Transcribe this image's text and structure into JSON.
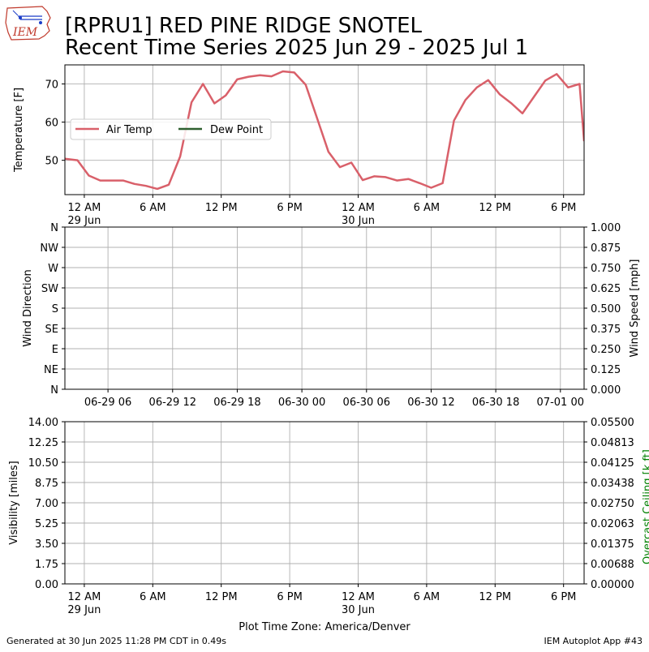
{
  "header": {
    "title_line1": "[RPRU1] RED PINE RIDGE SNOTEL",
    "title_line2": "Recent Time Series 2025 Jun 29 - 2025 Jul 1",
    "logo_text": "IEM"
  },
  "footer": {
    "generated": "Generated at 30 Jun 2025 11:28 PM CDT in 0.49s",
    "app": "IEM Autoplot App #43",
    "timezone_label": "Plot Time Zone: America/Denver"
  },
  "colors": {
    "air_temp": "#d9606a",
    "dew_point": "#2f5f2f",
    "ceiling_label": "#008000"
  },
  "chart_data": [
    {
      "type": "line",
      "ylabel": "Temperature [F]",
      "ylim": [
        41,
        75
      ],
      "yticks": [
        50,
        60,
        70
      ],
      "xlim_hours": [
        -1.7,
        43.8
      ],
      "xticks": [
        {
          "h": 0,
          "label": "12 AM",
          "sub": "29 Jun"
        },
        {
          "h": 6,
          "label": "6 AM",
          "sub": ""
        },
        {
          "h": 12,
          "label": "12 PM",
          "sub": ""
        },
        {
          "h": 18,
          "label": "6 PM",
          "sub": ""
        },
        {
          "h": 24,
          "label": "12 AM",
          "sub": "30 Jun"
        },
        {
          "h": 30,
          "label": "6 AM",
          "sub": ""
        },
        {
          "h": 36,
          "label": "12 PM",
          "sub": ""
        },
        {
          "h": 42,
          "label": "6 PM",
          "sub": ""
        }
      ],
      "grid": true,
      "legend_placement": "center-left",
      "series": [
        {
          "name": "Air Temp",
          "x_hours": [
            -1.7,
            -0.6,
            0.4,
            1.4,
            2.4,
            3.4,
            4.4,
            5.4,
            6.4,
            7.4,
            8.4,
            9.4,
            10.4,
            11.4,
            12.4,
            13.4,
            14.4,
            15.4,
            16.4,
            17.4,
            18.4,
            19.4,
            20.4,
            21.4,
            22.4,
            23.4,
            24.4,
            25.4,
            26.4,
            27.4,
            28.4,
            29.4,
            30.4,
            31.4,
            32.4,
            33.4,
            34.4,
            35.4,
            36.4,
            37.4,
            38.4,
            39.4,
            40.4,
            41.4,
            42.4,
            43.4,
            43.8
          ],
          "values": [
            50.4,
            50.0,
            46.0,
            44.7,
            44.7,
            44.7,
            43.8,
            43.3,
            42.5,
            43.6,
            51.0,
            65.2,
            70.0,
            64.9,
            67.0,
            71.2,
            71.9,
            72.3,
            72.0,
            73.3,
            73.0,
            69.8,
            61.0,
            52.2,
            48.2,
            49.4,
            44.8,
            45.8,
            45.6,
            44.7,
            45.1,
            44.0,
            42.8,
            44.0,
            60.4,
            65.8,
            69.1,
            71.0,
            67.3,
            65.0,
            62.3,
            66.6,
            70.9,
            72.6,
            69.1,
            70.0,
            55.0
          ]
        },
        {
          "name": "Dew Point",
          "x_hours": [],
          "values": []
        }
      ]
    },
    {
      "type": "scatter",
      "ylabel_left": "Wind Direction",
      "ylabel_right": "Wind Speed [mph]",
      "yticks_left": [
        "N",
        "NE",
        "E",
        "SE",
        "S",
        "SW",
        "W",
        "NW",
        "N"
      ],
      "ylim_right": [
        0,
        1
      ],
      "yticks_right": [
        "0.000",
        "0.125",
        "0.250",
        "0.375",
        "0.500",
        "0.625",
        "0.750",
        "0.875",
        "1.000"
      ],
      "xlim_hours": [
        2.0,
        50.2
      ],
      "xticks": [
        {
          "h": 6,
          "label": "06-29 06"
        },
        {
          "h": 12,
          "label": "06-29 12"
        },
        {
          "h": 18,
          "label": "06-29 18"
        },
        {
          "h": 24,
          "label": "06-30 00"
        },
        {
          "h": 30,
          "label": "06-30 06"
        },
        {
          "h": 36,
          "label": "06-30 12"
        },
        {
          "h": 42,
          "label": "06-30 18"
        },
        {
          "h": 48,
          "label": "07-01 00"
        }
      ],
      "grid": true,
      "series": []
    },
    {
      "type": "line",
      "ylabel_left": "Visibility [miles]",
      "ylabel_right": "Overcast Ceiling [k ft]",
      "ylim_left": [
        0,
        14
      ],
      "yticks_left": [
        "0.00",
        "1.75",
        "3.50",
        "5.25",
        "7.00",
        "8.75",
        "10.50",
        "12.25",
        "14.00"
      ],
      "ylim_right": [
        0,
        0.055
      ],
      "yticks_right": [
        "0.00000",
        "0.00688",
        "0.01375",
        "0.02063",
        "0.02750",
        "0.03438",
        "0.04125",
        "0.04813",
        "0.05500"
      ],
      "xlim_hours": [
        -1.7,
        43.8
      ],
      "xticks": [
        {
          "h": 0,
          "label": "12 AM",
          "sub": "29 Jun"
        },
        {
          "h": 6,
          "label": "6 AM",
          "sub": ""
        },
        {
          "h": 12,
          "label": "12 PM",
          "sub": ""
        },
        {
          "h": 18,
          "label": "6 PM",
          "sub": ""
        },
        {
          "h": 24,
          "label": "12 AM",
          "sub": "30 Jun"
        },
        {
          "h": 30,
          "label": "6 AM",
          "sub": ""
        },
        {
          "h": 36,
          "label": "12 PM",
          "sub": ""
        },
        {
          "h": 42,
          "label": "6 PM",
          "sub": ""
        }
      ],
      "grid": true,
      "series": []
    }
  ]
}
